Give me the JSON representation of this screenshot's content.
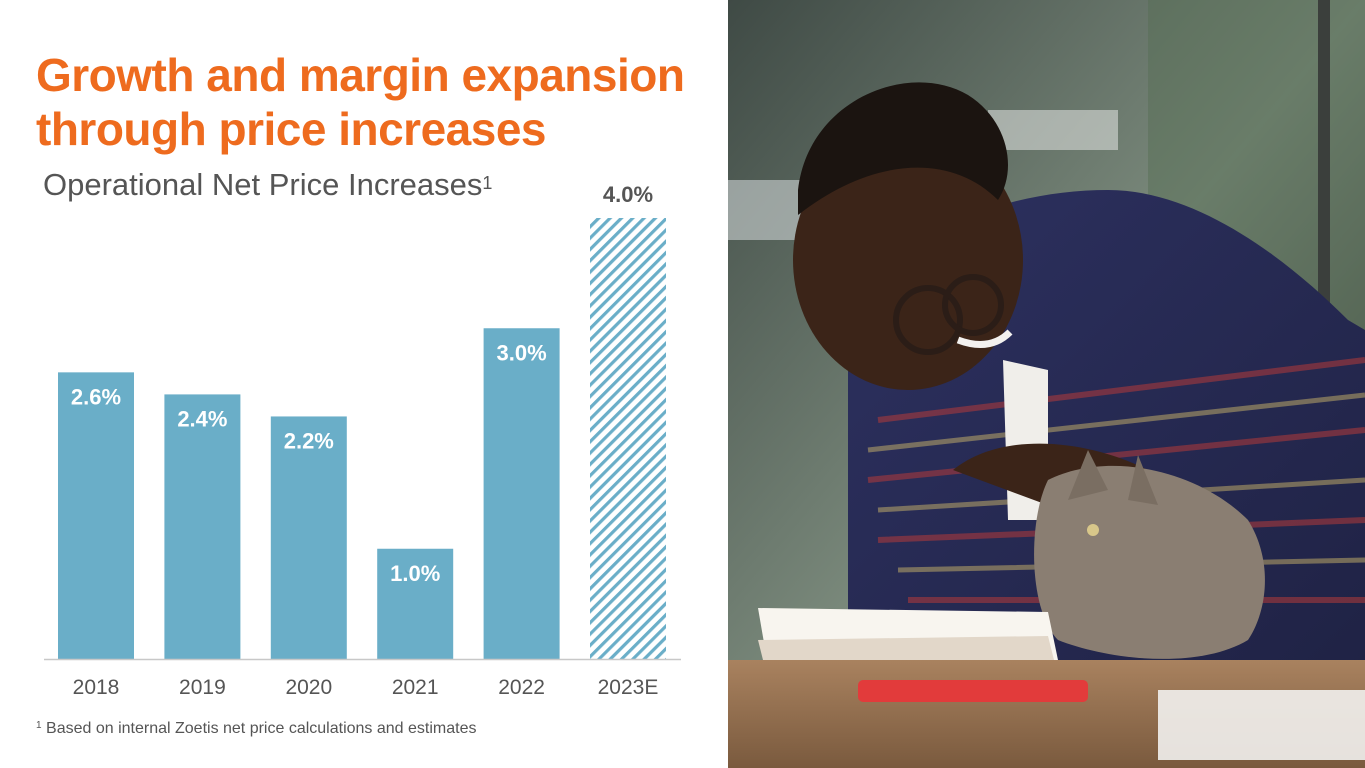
{
  "title_line1": "Growth and margin expansion",
  "title_line2": "through price increases",
  "subtitle": "Operational Net Price Increases",
  "subtitle_sup": "1",
  "footnote_sup": "1",
  "footnote": "Based on internal Zoetis net price calculations and estimates",
  "colors": {
    "accent": "#ee6b1e",
    "bar": "#6aaec8",
    "text": "#555555"
  },
  "chart_data": {
    "type": "bar",
    "title": "Operational Net Price Increases",
    "categories": [
      "2018",
      "2019",
      "2020",
      "2021",
      "2022",
      "2023E"
    ],
    "values": [
      2.6,
      2.4,
      2.2,
      1.0,
      3.0,
      4.0
    ],
    "labels": [
      "2.6%",
      "2.4%",
      "2.2%",
      "1.0%",
      "3.0%",
      "4.0%"
    ],
    "estimate_pattern": "diagonal-hatch",
    "estimate_category": "2023E",
    "ylim": [
      0,
      4.0
    ],
    "grid": false,
    "legend": "none"
  },
  "photo": {
    "icon": "person-with-cat-photo"
  }
}
